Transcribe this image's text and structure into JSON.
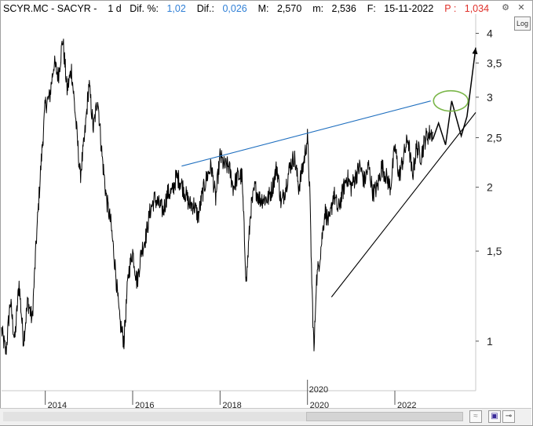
{
  "header": {
    "symbol": "SCYR.MC - SACYR -",
    "interval": "1 d",
    "dif_pct_label": "Dif. %:",
    "dif_pct_value": "1,02",
    "dif_label": "Dif.:",
    "dif_value": "0,026",
    "max_label": "M:",
    "max_value": "2,570",
    "min_label": "m:",
    "min_value": "2,536",
    "date_label": "F:",
    "date_value": "15-11-2022",
    "p_label": "P :",
    "p_value": "1,034"
  },
  "controls": {
    "log_label": "Log",
    "close_glyph": "✕",
    "gear_glyph": "⚙"
  },
  "chart_data": {
    "type": "line",
    "scale": "log",
    "ylim": [
      0.8,
      4.3
    ],
    "xlim": [
      2013.0,
      2023.85
    ],
    "y_ticks": [
      {
        "label": "4",
        "value": 4
      },
      {
        "label": "3,5",
        "value": 3.5
      },
      {
        "label": "3",
        "value": 3
      },
      {
        "label": "2,5",
        "value": 2.5
      },
      {
        "label": "2",
        "value": 2
      },
      {
        "label": "1,5",
        "value": 1.5
      },
      {
        "label": "1",
        "value": 1
      }
    ],
    "x_ticks": [
      {
        "label": "2014",
        "value": 2014.0
      },
      {
        "label": "2016",
        "value": 2016.0
      },
      {
        "label": "2018",
        "value": 2018.0
      },
      {
        "label": "2020",
        "value": 2020.0
      },
      {
        "label": "2022",
        "value": 2022.0
      }
    ],
    "cursor": {
      "label": "2020",
      "value": 2020.0
    },
    "series": [
      {
        "color": "#000000",
        "x": [
          2013.0,
          2013.1,
          2013.2,
          2013.3,
          2013.4,
          2013.5,
          2013.6,
          2013.7,
          2013.8,
          2013.9,
          2014.0,
          2014.1,
          2014.2,
          2014.3,
          2014.4,
          2014.5,
          2014.6,
          2014.7,
          2014.8,
          2014.9,
          2015.0,
          2015.1,
          2015.2,
          2015.3,
          2015.4,
          2015.5,
          2015.6,
          2015.7,
          2015.8,
          2015.9,
          2016.0,
          2016.1,
          2016.2,
          2016.3,
          2016.4,
          2016.5,
          2016.6,
          2016.7,
          2016.8,
          2016.9,
          2017.0,
          2017.1,
          2017.2,
          2017.3,
          2017.4,
          2017.5,
          2017.6,
          2017.7,
          2017.8,
          2017.9,
          2018.0,
          2018.1,
          2018.2,
          2018.3,
          2018.4,
          2018.5,
          2018.6,
          2018.7,
          2018.8,
          2018.9,
          2019.0,
          2019.1,
          2019.2,
          2019.3,
          2019.4,
          2019.5,
          2019.6,
          2019.7,
          2019.8,
          2019.9,
          2020.0,
          2020.05,
          2020.1,
          2020.15,
          2020.2,
          2020.3,
          2020.4,
          2020.5,
          2020.6,
          2020.7,
          2020.8,
          2020.9,
          2021.0,
          2021.1,
          2021.2,
          2021.3,
          2021.4,
          2021.5,
          2021.6,
          2021.7,
          2021.8,
          2021.9,
          2022.0,
          2022.1,
          2022.2,
          2022.3,
          2022.4,
          2022.5,
          2022.6,
          2022.7,
          2022.8,
          2022.87
        ],
        "y": [
          1.05,
          0.95,
          1.2,
          1.0,
          1.3,
          1.0,
          1.2,
          1.1,
          1.6,
          2.2,
          2.9,
          3.0,
          3.5,
          3.3,
          3.9,
          3.1,
          3.4,
          2.7,
          2.1,
          2.5,
          3.2,
          2.6,
          3.0,
          2.3,
          1.9,
          1.7,
          1.4,
          1.1,
          1.0,
          1.35,
          1.5,
          1.3,
          1.5,
          1.6,
          1.8,
          1.9,
          1.85,
          1.8,
          1.95,
          1.95,
          2.1,
          2.05,
          1.95,
          1.85,
          1.85,
          1.75,
          1.95,
          2.1,
          2.2,
          1.9,
          2.3,
          2.2,
          2.2,
          2.0,
          2.1,
          2.1,
          1.3,
          1.8,
          2.0,
          1.9,
          1.9,
          1.9,
          2.0,
          2.2,
          1.85,
          2.0,
          2.2,
          2.3,
          2.0,
          2.2,
          2.5,
          2.0,
          1.3,
          0.95,
          1.3,
          1.5,
          1.8,
          1.7,
          1.95,
          1.8,
          1.95,
          2.1,
          2.0,
          2.1,
          2.2,
          2.05,
          2.2,
          1.95,
          2.0,
          2.2,
          2.1,
          2.0,
          2.4,
          2.1,
          2.3,
          2.5,
          2.1,
          2.4,
          2.3,
          2.5,
          2.55,
          2.55
        ]
      }
    ],
    "annotations": [
      {
        "type": "trendline",
        "color": "#1f6fbf",
        "points": [
          [
            2017.12,
            2.2
          ],
          [
            2022.82,
            2.95
          ]
        ]
      },
      {
        "type": "trendline",
        "color": "#000000",
        "points": [
          [
            2020.55,
            1.22
          ],
          [
            2023.85,
            2.8
          ]
        ]
      },
      {
        "type": "projection",
        "color": "#000000",
        "points": [
          [
            2022.87,
            2.48
          ],
          [
            2023.0,
            2.67
          ],
          [
            2023.16,
            2.42
          ],
          [
            2023.3,
            2.95
          ],
          [
            2023.52,
            2.52
          ],
          [
            2023.65,
            2.75
          ],
          [
            2023.85,
            3.75
          ]
        ]
      },
      {
        "type": "ellipse",
        "color": "#7ab648",
        "center": [
          2023.28,
          2.95
        ]
      }
    ]
  }
}
